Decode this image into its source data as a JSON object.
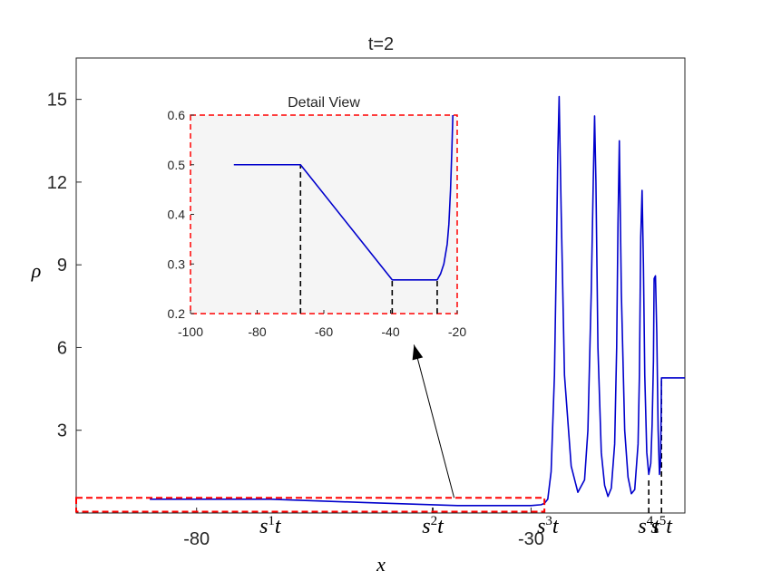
{
  "chart_data": [
    {
      "type": "line",
      "title": "t=2",
      "xlabel": "x",
      "ylabel": "ρ",
      "xlim": [
        -98,
        -7
      ],
      "ylim": [
        0,
        16.5
      ],
      "xticks": [
        {
          "value": -80,
          "label": "-80"
        },
        {
          "value": -30,
          "label": "-30"
        }
      ],
      "yticks": [
        {
          "value": 3,
          "label": "3"
        },
        {
          "value": 6,
          "label": "6"
        },
        {
          "value": 9,
          "label": "9"
        },
        {
          "value": 12,
          "label": "12"
        },
        {
          "value": 15,
          "label": "15"
        }
      ],
      "series": [
        {
          "color": "#0000cc",
          "x": [
            -87,
            -69,
            -55,
            -41,
            -30,
            -28.5,
            -28,
            -27.5,
            -27,
            -26.5,
            -26.2,
            -26,
            -25.8,
            -25.5,
            -25,
            -24,
            -23,
            -22,
            -21.5,
            -21,
            -20.7,
            -20.5,
            -20.3,
            -20,
            -19.5,
            -19,
            -18.5,
            -18,
            -17.5,
            -17.2,
            -17,
            -16.8,
            -16.5,
            -16,
            -15.5,
            -15,
            -14.5,
            -14,
            -13.8,
            -13.6,
            -13.4,
            -13.2,
            -13,
            -12.7,
            -12.4,
            -12.1,
            -11.9,
            -11.7,
            -11.6,
            -11.4,
            -11.2,
            -11,
            -10.8,
            -10.65,
            -10.55,
            -10.5,
            -10.3,
            -9,
            -7
          ],
          "y": [
            0.5,
            0.5,
            0.38,
            0.27,
            0.27,
            0.3,
            0.35,
            0.5,
            1.5,
            5,
            9.5,
            13,
            15.1,
            11,
            5,
            1.7,
            0.75,
            1.2,
            3,
            8,
            12,
            14.4,
            12,
            6,
            2.2,
            1.0,
            0.6,
            0.9,
            2.5,
            6,
            10.5,
            13.5,
            8,
            3,
            1.3,
            0.7,
            0.85,
            2.5,
            5,
            10,
            11.7,
            9,
            5,
            2.2,
            1.4,
            1.8,
            3.2,
            5.5,
            8.5,
            8.6,
            6.5,
            3,
            1.4,
            1.8,
            3.5,
            4.9,
            4.9,
            4.9,
            4.9
          ]
        }
      ],
      "vlines": [
        {
          "x": -44.7,
          "y_top": 0.27,
          "label": "s^2 t"
        },
        {
          "x": -12.4,
          "y_top": 1.3,
          "label": "s^4 t"
        },
        {
          "x": -10.5,
          "y_top": 4.9,
          "label": "s^5 t"
        }
      ],
      "shock_labels": [
        {
          "x": -69,
          "label": "s^1 t"
        },
        {
          "x": -44.7,
          "label": "s^2 t"
        },
        {
          "x": -27.5,
          "label": "s^3 t"
        },
        {
          "x": -12.4,
          "label": "s^4 t"
        },
        {
          "x": -10.5,
          "label": "s^5 t"
        }
      ],
      "highlight_box": {
        "x": [
          -98,
          -28
        ],
        "y": [
          0.05,
          0.55
        ],
        "color": "#ff0000",
        "style": "dashed"
      },
      "arrow": {
        "from": [
          -41.5,
          0.55
        ],
        "to": [
          -47.5,
          6.1
        ]
      }
    },
    {
      "type": "line",
      "title": "Detail View",
      "xlim": [
        -100,
        -20
      ],
      "ylim": [
        0.2,
        0.6
      ],
      "background": "#f5f5f5",
      "border_color": "#ff0000",
      "xticks": [
        {
          "value": -100,
          "label": "-100"
        },
        {
          "value": -80,
          "label": "-80"
        },
        {
          "value": -60,
          "label": "-60"
        },
        {
          "value": -40,
          "label": "-40"
        },
        {
          "value": -20,
          "label": "-20"
        }
      ],
      "yticks": [
        {
          "value": 0.2,
          "label": "0.2"
        },
        {
          "value": 0.3,
          "label": "0.3"
        },
        {
          "value": 0.4,
          "label": "0.4"
        },
        {
          "value": 0.5,
          "label": "0.5"
        },
        {
          "value": 0.6,
          "label": "0.6"
        }
      ],
      "series": [
        {
          "color": "#0000cc",
          "x": [
            -87,
            -67,
            -39.5,
            -26,
            -25,
            -24,
            -23,
            -22.5,
            -22,
            -21.6,
            -21.3
          ],
          "y": [
            0.5,
            0.5,
            0.268,
            0.268,
            0.28,
            0.3,
            0.34,
            0.38,
            0.45,
            0.53,
            0.6
          ]
        }
      ],
      "vlines": [
        {
          "x": -67,
          "y_top": 0.5
        },
        {
          "x": -39.5,
          "y_top": 0.268
        },
        {
          "x": -26,
          "y_top": 0.268
        }
      ]
    }
  ]
}
